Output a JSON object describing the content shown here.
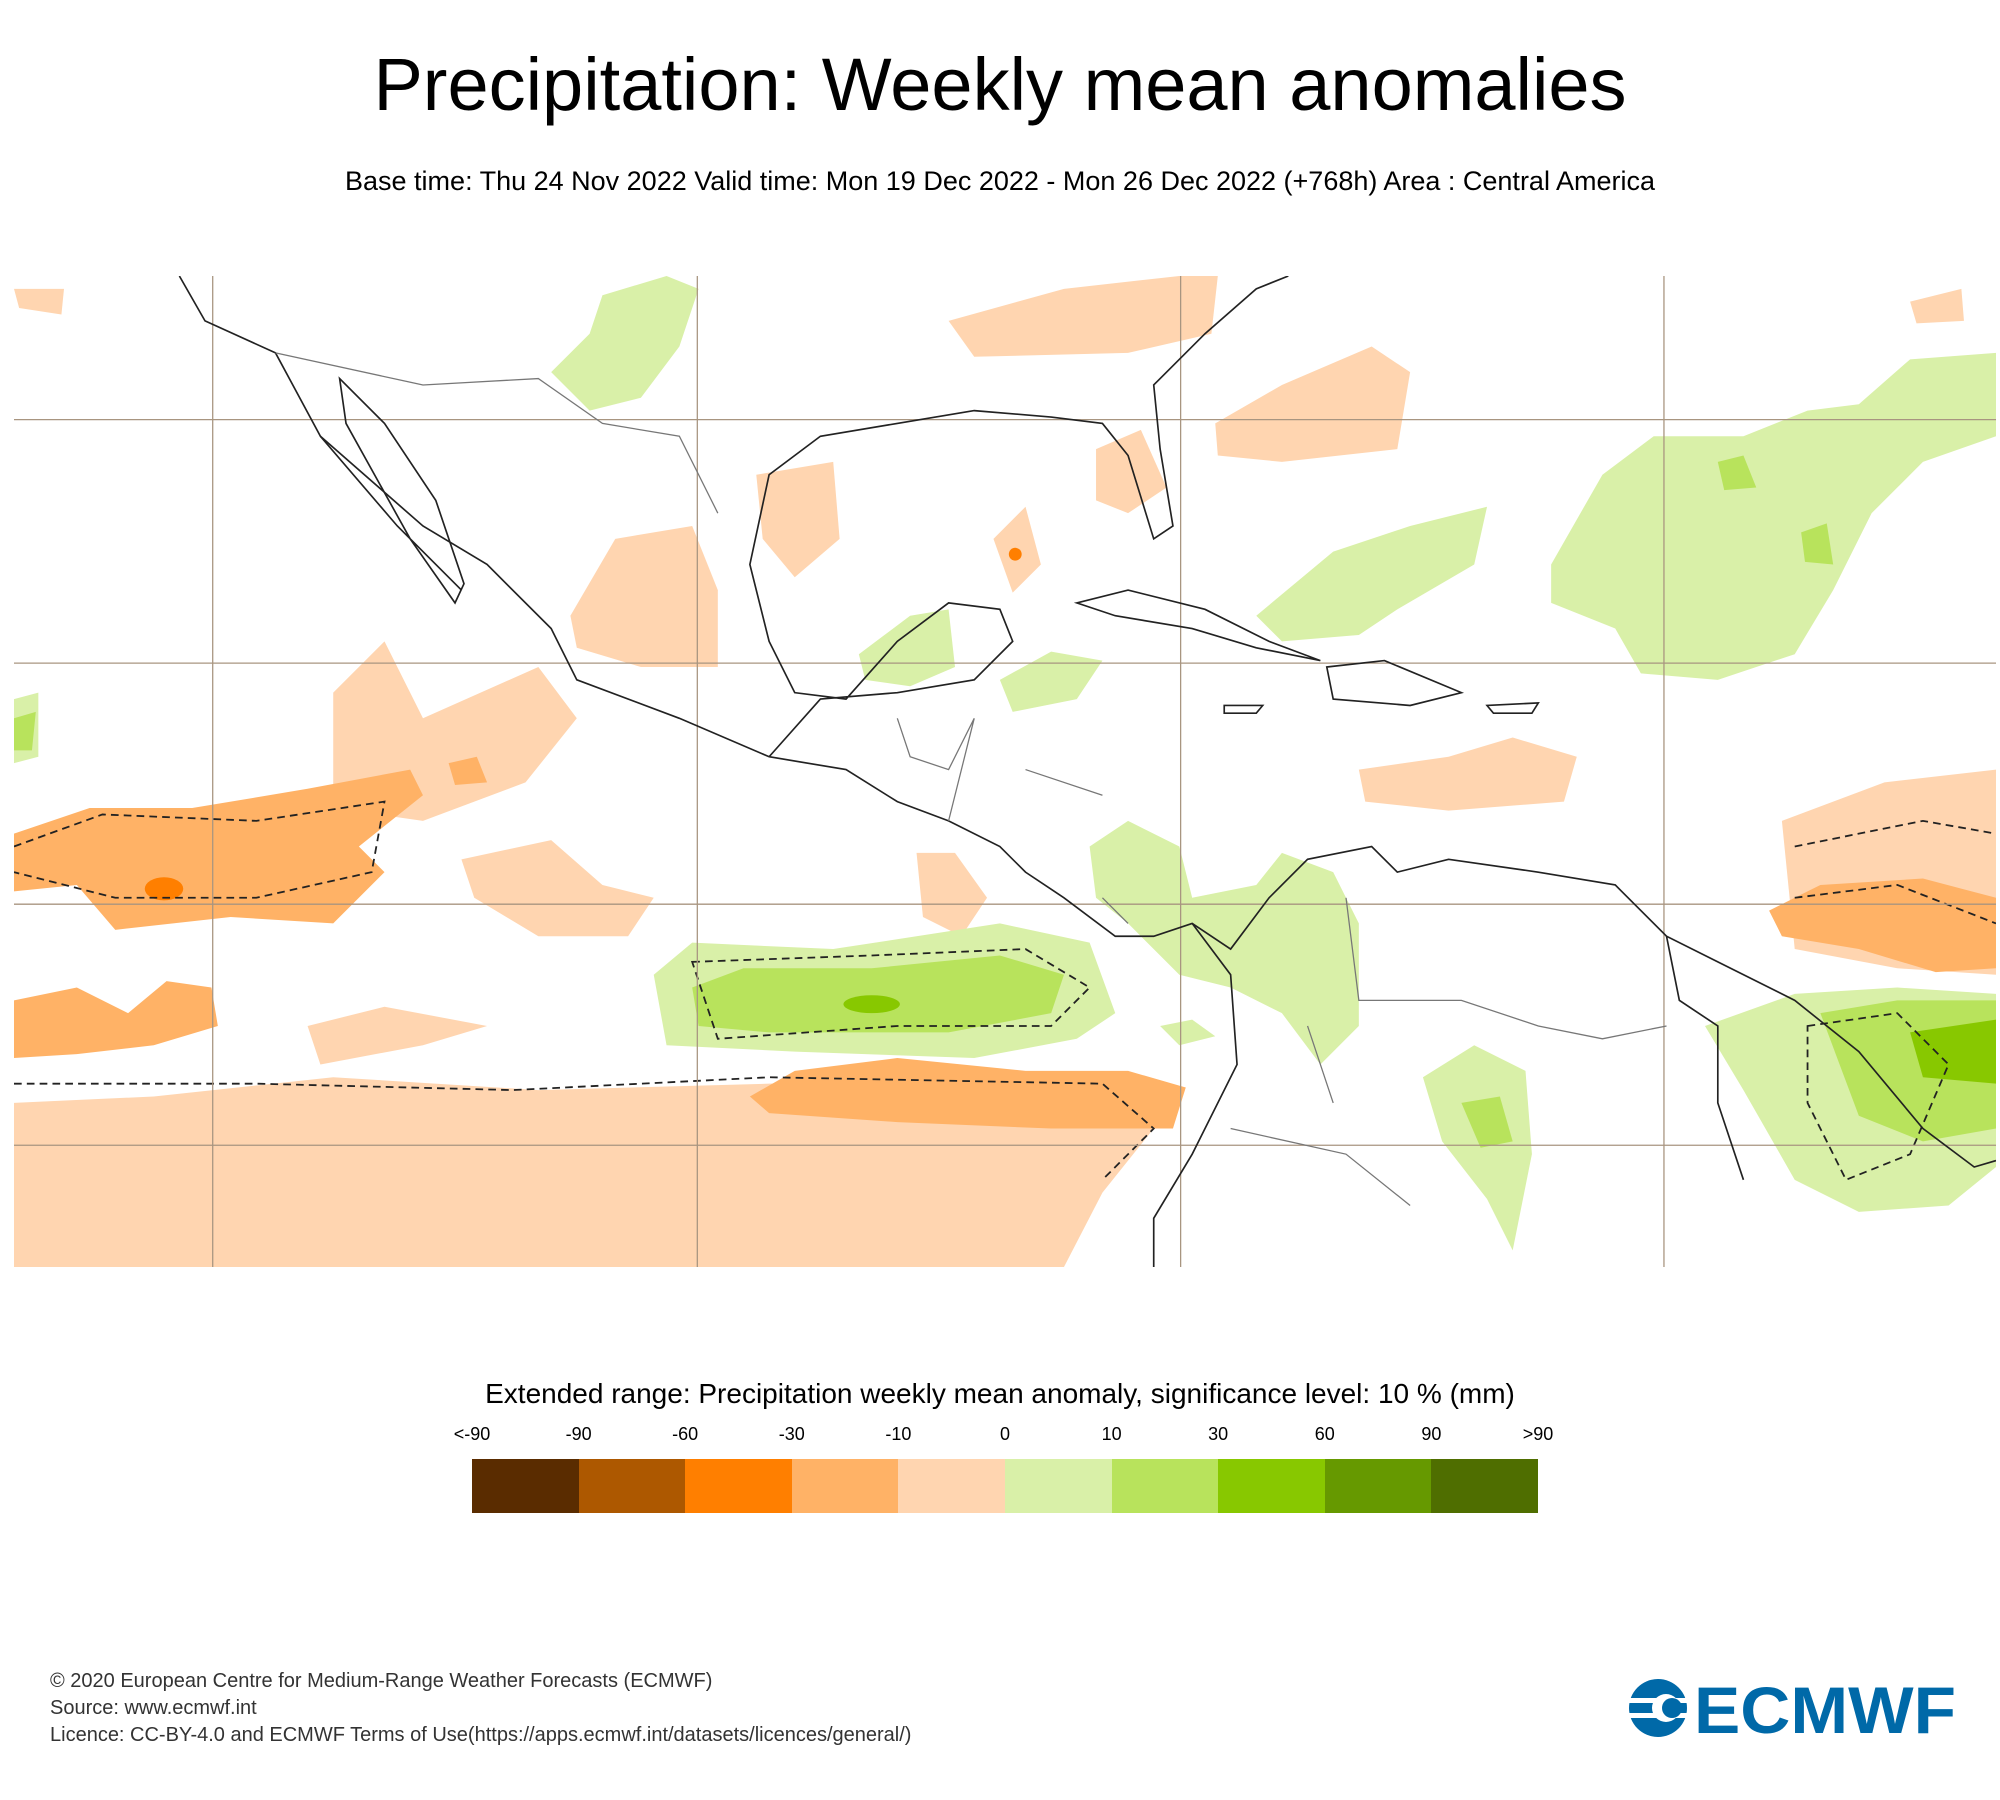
{
  "title": "Precipitation: Weekly mean anomalies",
  "subtitle": "Base time: Thu 24 Nov 2022 Valid time: Mon 19 Dec 2022 - Mon 26 Dec 2022 (+768h) Area : Central America",
  "legend": {
    "title": "Extended range: Precipitation weekly mean anomaly, significance level: 10 % (mm)",
    "ticks": [
      "<-90",
      "-90",
      "-60",
      "-30",
      "-10",
      "0",
      "10",
      "30",
      "60",
      "90",
      ">90"
    ],
    "colors": [
      "#5a2c00",
      "#ad5800",
      "#ff7f00",
      "#ffb266",
      "#ffd5b0",
      "#d9f0a8",
      "#b8e35c",
      "#88c800",
      "#669900",
      "#4f6e00"
    ]
  },
  "footer": {
    "copyright": "© 2020 European Centre for Medium-Range Weather Forecasts (ECMWF)",
    "source": "Source: www.ecmwf.int",
    "licence": "Licence: CC-BY-4.0 and ECMWF Terms of Use(https://apps.ecmwf.int/datasets/licences/general/)"
  },
  "logo": {
    "text": "ECMWF",
    "color": "#0069a8"
  }
}
